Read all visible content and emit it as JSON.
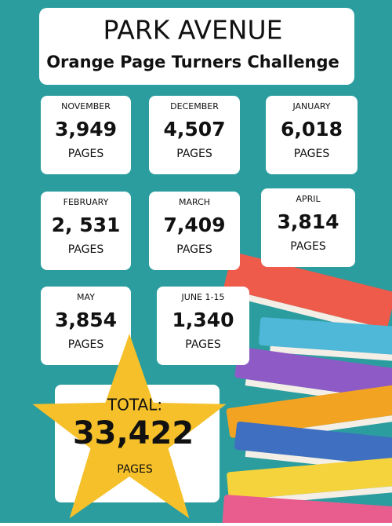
{
  "header": {
    "title": "PARK AVENUE",
    "subtitle": "Orange Page Turners Challenge"
  },
  "months": [
    {
      "month": "NOVEMBER",
      "pages": "3,949",
      "unit": "PAGES"
    },
    {
      "month": "DECEMBER",
      "pages": "4,507",
      "unit": "PAGES"
    },
    {
      "month": "JANUARY",
      "pages": "6,018",
      "unit": "PAGES"
    },
    {
      "month": "FEBRUARY",
      "pages": "2, 531",
      "unit": "PAGES"
    },
    {
      "month": "MARCH",
      "pages": "7,409",
      "unit": "PAGES"
    },
    {
      "month": "APRIL",
      "pages": "3,814",
      "unit": "PAGES"
    },
    {
      "month": "MAY",
      "pages": "3,854",
      "unit": "PAGES"
    },
    {
      "month": "JUNE 1-15",
      "pages": "1,340",
      "unit": "PAGES"
    }
  ],
  "total": {
    "label": "TOTAL:",
    "pages": "33,422",
    "unit": "PAGES"
  }
}
